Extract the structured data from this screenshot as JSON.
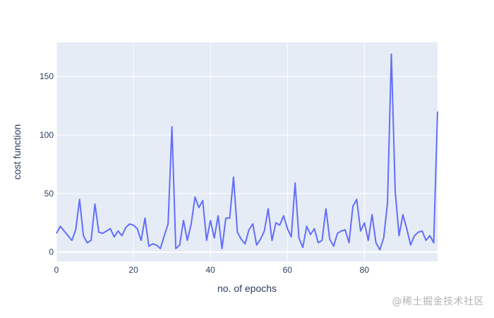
{
  "colors": {
    "plot_background": "#e5ecf6",
    "grid": "#ffffff",
    "line": "#636efa",
    "text": "#2a3f5f",
    "watermark": "#b3b3b3"
  },
  "watermark": "@稀土掘金技术社区",
  "chart_data": {
    "type": "line",
    "title": "",
    "xlabel": "no. of epochs",
    "ylabel": "cost function",
    "xlim": [
      0,
      99
    ],
    "ylim": [
      -8,
      179
    ],
    "grid": true,
    "legend": "none",
    "x_ticks": [
      0,
      20,
      40,
      60,
      80
    ],
    "x_tick_labels": [
      "0",
      "20",
      "40",
      "60",
      "80"
    ],
    "y_ticks": [
      0,
      50,
      100,
      150
    ],
    "y_tick_labels": [
      "0",
      "50",
      "100",
      "150"
    ],
    "series": [
      {
        "x": [
          0,
          1,
          2,
          3,
          4,
          5,
          6,
          7,
          8,
          9,
          10,
          11,
          12,
          13,
          14,
          15,
          16,
          17,
          18,
          19,
          20,
          21,
          22,
          23,
          24,
          25,
          26,
          27,
          28,
          29,
          30,
          31,
          32,
          33,
          34,
          35,
          36,
          37,
          38,
          39,
          40,
          41,
          42,
          43,
          44,
          45,
          46,
          47,
          48,
          49,
          50,
          51,
          52,
          53,
          54,
          55,
          56,
          57,
          58,
          59,
          60,
          61,
          62,
          63,
          64,
          65,
          66,
          67,
          68,
          69,
          70,
          71,
          72,
          73,
          74,
          75,
          76,
          77,
          78,
          79,
          80,
          81,
          82,
          83,
          84,
          85,
          86,
          87,
          88,
          89,
          90,
          91,
          92,
          93,
          94,
          95,
          96,
          97,
          98,
          99
        ],
        "values": [
          16,
          22,
          18,
          14,
          10,
          19,
          45,
          14,
          8,
          10,
          41,
          17,
          16,
          18,
          20,
          13,
          18,
          14,
          21,
          24,
          23,
          20,
          10,
          29,
          5,
          7,
          6,
          3,
          14,
          24,
          107,
          3,
          6,
          27,
          10,
          24,
          47,
          38,
          44,
          10,
          27,
          12,
          31,
          3,
          29,
          29,
          64,
          17,
          11,
          7,
          19,
          24,
          6,
          11,
          18,
          37,
          10,
          25,
          23,
          31,
          20,
          13,
          59,
          12,
          4,
          22,
          15,
          20,
          8,
          10,
          37,
          11,
          5,
          16,
          18,
          19,
          8,
          39,
          45,
          18,
          25,
          10,
          32,
          8,
          2,
          12,
          42,
          169,
          52,
          14,
          32,
          20,
          6,
          14,
          17,
          18,
          10,
          14,
          8,
          120
        ]
      }
    ]
  }
}
